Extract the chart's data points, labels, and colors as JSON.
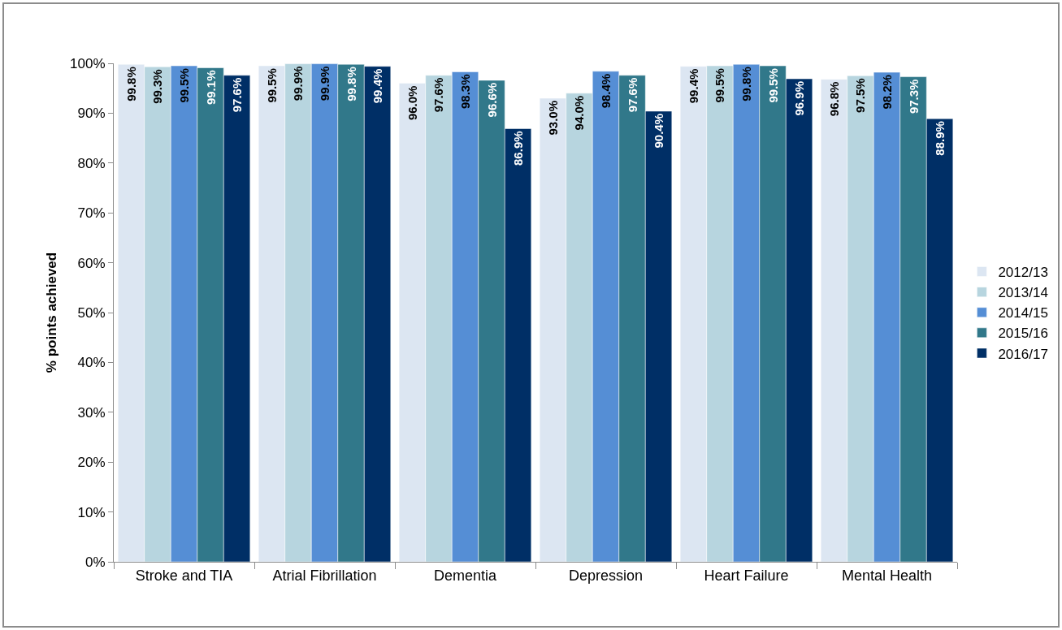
{
  "chart_data": {
    "type": "bar",
    "ylabel": "% points achieved",
    "categories": [
      "Stroke and TIA",
      "Atrial Fibrillation",
      "Dementia",
      "Depression",
      "Heart Failure",
      "Mental Health"
    ],
    "series": [
      {
        "name": "2012/13",
        "color": "#dce6f2",
        "values": [
          99.8,
          99.5,
          96.0,
          93.0,
          99.4,
          96.8
        ],
        "value_labels": [
          "99.8%",
          "99.5%",
          "96.0%",
          "93.0%",
          "99.4%",
          "96.8%"
        ]
      },
      {
        "name": "2013/14",
        "color": "#b7d5df",
        "values": [
          99.3,
          99.9,
          97.6,
          94.0,
          99.5,
          97.5
        ],
        "value_labels": [
          "99.3%",
          "99.9%",
          "97.6%",
          "94.0%",
          "99.5%",
          "97.5%"
        ]
      },
      {
        "name": "2014/15",
        "color": "#558ed5",
        "values": [
          99.5,
          99.9,
          98.3,
          98.4,
          99.8,
          98.2
        ],
        "value_labels": [
          "99.5%",
          "99.9%",
          "98.3%",
          "98.4%",
          "99.8%",
          "98.2%"
        ]
      },
      {
        "name": "2015/16",
        "color": "#31788a",
        "values": [
          99.1,
          99.8,
          96.6,
          97.6,
          99.5,
          97.3
        ],
        "value_labels": [
          "99.1%",
          "99.8%",
          "96.6%",
          "97.6%",
          "99.5%",
          "97.3%"
        ]
      },
      {
        "name": "2016/17",
        "color": "#002f66",
        "values": [
          97.6,
          99.4,
          86.9,
          90.4,
          96.9,
          88.9
        ],
        "value_labels": [
          "97.6%",
          "99.4%",
          "86.9%",
          "90.4%",
          "96.9%",
          "88.9%"
        ]
      }
    ],
    "ylim": [
      0,
      100
    ],
    "yticks": [
      {
        "value": 0,
        "label": "0%"
      },
      {
        "value": 10,
        "label": "10%"
      },
      {
        "value": 20,
        "label": "20%"
      },
      {
        "value": 30,
        "label": "30%"
      },
      {
        "value": 40,
        "label": "40%"
      },
      {
        "value": 50,
        "label": "50%"
      },
      {
        "value": 60,
        "label": "60%"
      },
      {
        "value": 70,
        "label": "70%"
      },
      {
        "value": 80,
        "label": "80%"
      },
      {
        "value": 90,
        "label": "90%"
      },
      {
        "value": 100,
        "label": "100%"
      }
    ],
    "grid": false,
    "legend": "right"
  }
}
